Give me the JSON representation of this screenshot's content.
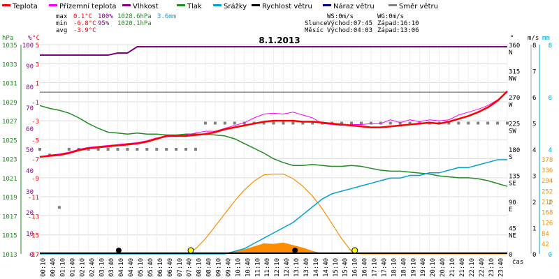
{
  "chart_data": {
    "type": "line",
    "title": "8.1.2013",
    "legend": [
      {
        "name": "Teplota",
        "color": "#ff0000"
      },
      {
        "name": "Přízemní teplota",
        "color": "#ff00ff"
      },
      {
        "name": "Vlhkost",
        "color": "#800080"
      },
      {
        "name": "Tlak",
        "color": "#228b22"
      },
      {
        "name": "Srážky",
        "color": "#00a0d0"
      },
      {
        "name": "Rychlost větru",
        "color": "#000000"
      },
      {
        "name": "Náraz větru",
        "color": "#000080"
      },
      {
        "name": "Směr větru",
        "color": "#808080"
      }
    ],
    "stats": {
      "max_label": "max",
      "max_temp": "0.1°C",
      "max_hum": "100%",
      "max_press": "1028.6hPa",
      "max_rain": "3.6mm",
      "min_label": "min",
      "min_temp": "-6.8°C",
      "min_hum": "95%",
      "min_press": "1020.1hPa",
      "avg_label": "avg",
      "avg_temp": "-3.9°C",
      "ws": "WS:0m/s",
      "wg": "WG:0m/s",
      "sun_label": "Slunce",
      "sun_rise": "Východ:07:45",
      "sun_set": "Západ:16:10",
      "moon_label": "Měsíc",
      "moon_rise": "Východ:04:03",
      "moon_set": "Západ:13:06"
    },
    "axis_labels": {
      "hpa": "hPa",
      "pct": "%",
      "degc": "°C",
      "deg": "°",
      "ms": "m/s",
      "mm": "mm",
      "xlabel": "čas"
    },
    "axes": {
      "pressure_ticks": [
        "1035",
        "1033",
        "1031",
        "1029",
        "1027",
        "1025",
        "1023",
        "1021",
        "1019",
        "1017",
        "1015",
        "1013"
      ],
      "humidity_ticks": [
        "100",
        "90",
        "80",
        "70",
        "60",
        "50",
        "40",
        "30",
        "20",
        "10",
        "0"
      ],
      "temp_ticks": [
        "5",
        "3",
        "1",
        "-1",
        "-3",
        "-5",
        "-7",
        "-9",
        "-11",
        "-13",
        "-15",
        "-17"
      ],
      "dir_ticks": [
        "360 N",
        "315 NW",
        "270 W",
        "225 SW",
        "180 S",
        "135 SE",
        "90 E",
        "45 NE",
        "0"
      ],
      "wind_ticks": [
        "8",
        "7",
        "6",
        "5",
        "4",
        "3",
        "2",
        "1",
        "0"
      ],
      "rain_ticks": [
        "8",
        "6",
        "4",
        "2",
        "0"
      ],
      "solar_ticks": [
        "378",
        "336",
        "294",
        "252",
        "210",
        "168",
        "126",
        "84",
        "42"
      ],
      "time_labels": [
        "00:10",
        "00:40",
        "01:10",
        "01:40",
        "02:10",
        "02:40",
        "03:10",
        "03:40",
        "04:10",
        "04:40",
        "05:10",
        "05:40",
        "06:10",
        "06:40",
        "07:10",
        "07:40",
        "08:10",
        "08:40",
        "09:10",
        "09:40",
        "10:10",
        "10:40",
        "11:10",
        "11:40",
        "12:10",
        "12:40",
        "13:10",
        "13:40",
        "14:10",
        "14:40",
        "15:10",
        "15:40",
        "16:10",
        "16:40",
        "17:10",
        "17:40",
        "18:10",
        "18:40",
        "19:10",
        "19:40",
        "20:10",
        "20:40",
        "21:10",
        "21:40",
        "22:10",
        "22:40",
        "23:10",
        "23:40"
      ]
    },
    "x_hours": [
      0,
      0.5,
      1,
      1.5,
      2,
      2.5,
      3,
      3.5,
      4,
      4.5,
      5,
      5.5,
      6,
      6.5,
      7,
      7.5,
      8,
      8.5,
      9,
      9.5,
      10,
      10.5,
      11,
      11.5,
      12,
      12.5,
      13,
      13.5,
      14,
      14.5,
      15,
      15.5,
      16,
      16.5,
      17,
      17.5,
      18,
      18.5,
      19,
      19.5,
      20,
      20.5,
      21,
      21.5,
      22,
      22.5,
      23,
      23.5,
      24
    ],
    "temperature": [
      -6.8,
      -6.7,
      -6.6,
      -6.4,
      -6.1,
      -5.9,
      -5.8,
      -5.7,
      -5.6,
      -5.5,
      -5.4,
      -5.2,
      -4.9,
      -4.6,
      -4.6,
      -4.6,
      -4.5,
      -4.4,
      -4.2,
      -3.9,
      -3.7,
      -3.5,
      -3.3,
      -3.1,
      -3.0,
      -3.0,
      -3.0,
      -3.1,
      -3.1,
      -3.2,
      -3.3,
      -3.4,
      -3.5,
      -3.6,
      -3.7,
      -3.7,
      -3.6,
      -3.5,
      -3.4,
      -3.3,
      -3.2,
      -3.3,
      -3.1,
      -2.8,
      -2.5,
      -2.1,
      -1.6,
      -0.9,
      0.1
    ],
    "ground_temp": [
      -6.8,
      -6.6,
      -6.5,
      -6.3,
      -6.0,
      -5.8,
      -5.7,
      -5.6,
      -5.5,
      -5.4,
      -5.3,
      -5.1,
      -4.8,
      -4.7,
      -4.6,
      -4.5,
      -4.3,
      -4.1,
      -4.1,
      -3.8,
      -3.5,
      -3.2,
      -2.7,
      -2.3,
      -2.2,
      -2.3,
      -2.1,
      -2.4,
      -2.7,
      -3.3,
      -3.4,
      -3.5,
      -3.4,
      -3.4,
      -3.3,
      -3.3,
      -2.9,
      -3.2,
      -2.9,
      -3.1,
      -2.9,
      -3.0,
      -2.9,
      -2.4,
      -2.1,
      -1.8,
      -1.4,
      -0.8,
      0.0
    ],
    "humidity": [
      95,
      95,
      95,
      95,
      95,
      95,
      95,
      95,
      96,
      96,
      99,
      99,
      99,
      99,
      99,
      99,
      99,
      99,
      99,
      99,
      99,
      99,
      99,
      99,
      99,
      99,
      99,
      99,
      99,
      99,
      99,
      99,
      99,
      99,
      99,
      99,
      99,
      99,
      99,
      99,
      99,
      99,
      99,
      99,
      99,
      99,
      99,
      99,
      99
    ],
    "pressure": [
      1028.6,
      1028.3,
      1028.1,
      1027.8,
      1027.3,
      1026.7,
      1026.2,
      1025.8,
      1025.7,
      1025.6,
      1025.7,
      1025.6,
      1025.6,
      1025.5,
      1025.5,
      1025.6,
      1025.6,
      1025.6,
      1025.5,
      1025.4,
      1025.1,
      1024.6,
      1024.1,
      1023.6,
      1023.0,
      1022.6,
      1022.3,
      1022.3,
      1022.4,
      1022.3,
      1022.2,
      1022.2,
      1022.3,
      1022.2,
      1022.0,
      1021.8,
      1021.7,
      1021.7,
      1021.6,
      1021.5,
      1021.4,
      1021.2,
      1021.1,
      1021.0,
      1021.0,
      1020.9,
      1020.7,
      1020.4,
      1020.1
    ],
    "rain_total": [
      0,
      0,
      0,
      0,
      0,
      0,
      0,
      0,
      0,
      0,
      0,
      0,
      0,
      0,
      0,
      0,
      0,
      0,
      0,
      0,
      0.1,
      0.2,
      0.4,
      0.6,
      0.8,
      1.0,
      1.2,
      1.5,
      1.8,
      2.1,
      2.3,
      2.4,
      2.5,
      2.6,
      2.7,
      2.8,
      2.9,
      2.9,
      3.0,
      3.0,
      3.1,
      3.1,
      3.2,
      3.3,
      3.3,
      3.4,
      3.5,
      3.6,
      3.6
    ],
    "wind_dir": [
      180,
      170,
      80,
      180,
      180,
      180,
      180,
      180,
      180,
      180,
      180,
      180,
      180,
      180,
      180,
      180,
      180,
      225,
      225,
      225,
      225,
      225,
      225,
      225,
      225,
      225,
      225,
      225,
      225,
      225,
      225,
      225,
      225,
      225,
      225,
      225,
      225,
      225,
      225,
      225,
      225,
      225,
      225,
      225,
      225,
      225,
      225,
      225,
      225
    ],
    "solar": [
      0,
      0,
      0,
      0,
      0,
      0,
      0,
      0,
      0,
      0,
      0,
      0,
      0,
      0,
      0,
      0,
      0,
      0,
      0,
      0,
      8,
      18,
      30,
      42,
      40,
      45,
      35,
      25,
      12,
      2,
      0,
      0,
      0,
      0,
      0,
      0,
      0,
      0,
      0,
      0,
      0,
      0,
      0,
      0,
      0,
      0,
      0,
      0,
      0
    ],
    "clear_sky": [
      0,
      0,
      0,
      0,
      0,
      0,
      0,
      0,
      0,
      0,
      0,
      0,
      0,
      0,
      0,
      0,
      20,
      60,
      110,
      160,
      210,
      255,
      290,
      315,
      318,
      318,
      300,
      270,
      230,
      180,
      120,
      60,
      10,
      0,
      0,
      0,
      0,
      0,
      0,
      0,
      0,
      0,
      0,
      0,
      0,
      0,
      0,
      0,
      0
    ],
    "sunrise_hour": 7.75,
    "sunset_hour": 16.17,
    "moonrise_hour": 4.05,
    "moonset_hour": 13.1
  }
}
